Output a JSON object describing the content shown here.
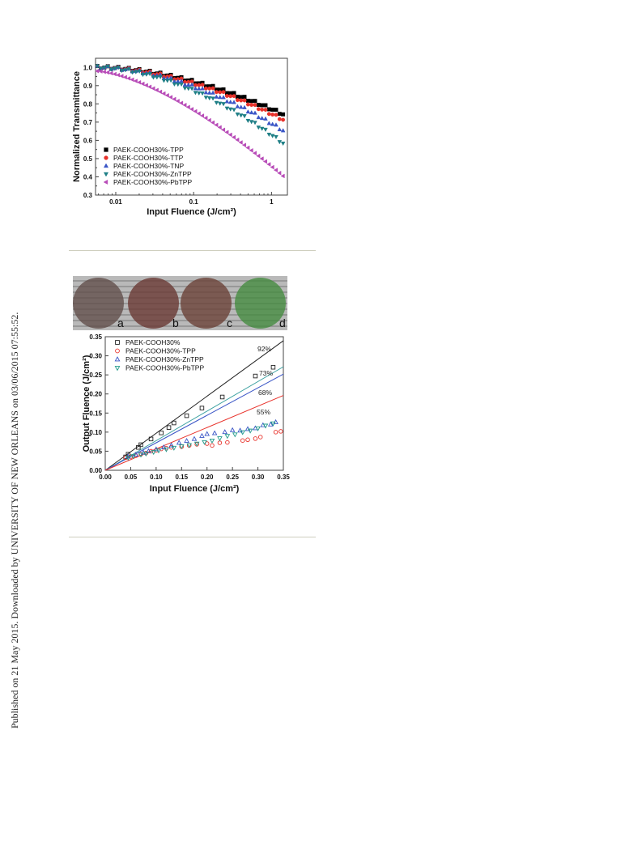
{
  "side_note": "Published on 21 May 2015. Downloaded by UNIVERSITY OF NEW ORLEANS on 03/06/2015 07:55:52.",
  "photo": {
    "labels": [
      "a",
      "b",
      "c",
      "d"
    ],
    "tints": [
      "#5d4a45",
      "#6a3a35",
      "#6b4238",
      "#3f8a3a"
    ]
  },
  "chart_data": [
    {
      "type": "scatter",
      "xlabel": "Input Fluence (J/cm²)",
      "ylabel": "Normalized Transmittance",
      "xscale": "log",
      "xlim": [
        0.0055,
        1.6
      ],
      "ylim": [
        0.3,
        1.05
      ],
      "xticks": [
        "0.01",
        "0.1",
        "1"
      ],
      "yticks": [
        "0.3",
        "0.4",
        "0.5",
        "0.6",
        "0.7",
        "0.8",
        "0.9",
        "1.0"
      ],
      "legend_position": "bottom-left",
      "series": [
        {
          "name": "PAEK-COOH30%-TPP",
          "color": "#000000",
          "marker": "square",
          "y_end": 0.74
        },
        {
          "name": "PAEK-COOH30%-TTP",
          "color": "#e8322b",
          "marker": "circle",
          "y_end": 0.71
        },
        {
          "name": "PAEK-COOH30%-TNP",
          "color": "#3a55c6",
          "marker": "triangle-up",
          "y_end": 0.65
        },
        {
          "name": "PAEK-COOH30%-ZnTPP",
          "color": "#1f7f86",
          "marker": "triangle-down",
          "y_end": 0.58
        },
        {
          "name": "PAEK-COOH30%-PbTPP",
          "color": "#b84cb8",
          "marker": "triangle-left",
          "y_end": 0.4
        }
      ]
    },
    {
      "type": "scatter",
      "xlabel": "Input Fluence (J/cm²)",
      "ylabel": "Output Fluence (J/cm²)",
      "xlim": [
        0.0,
        0.35
      ],
      "ylim": [
        0.0,
        0.35
      ],
      "xticks": [
        "0.00",
        "0.05",
        "0.10",
        "0.15",
        "0.20",
        "0.25",
        "0.30",
        "0.35"
      ],
      "yticks": [
        "0.00",
        "0.05",
        "0.10",
        "0.15",
        "0.20",
        "0.25",
        "0.30",
        "0.35"
      ],
      "legend_position": "top-left",
      "series": [
        {
          "name": "PAEK-COOH30%",
          "color": "#222222",
          "marker": "open-square",
          "x": [
            0.04,
            0.045,
            0.065,
            0.07,
            0.09,
            0.11,
            0.125,
            0.135,
            0.16,
            0.19,
            0.23,
            0.295,
            0.33
          ],
          "y": [
            0.035,
            0.042,
            0.06,
            0.067,
            0.082,
            0.098,
            0.112,
            0.124,
            0.143,
            0.163,
            0.192,
            0.247,
            0.27
          ]
        },
        {
          "name": "PAEK-COOH30%-TPP",
          "color": "#e8322b",
          "marker": "open-circle",
          "x": [
            0.04,
            0.05,
            0.06,
            0.07,
            0.08,
            0.09,
            0.1,
            0.11,
            0.12,
            0.13,
            0.15,
            0.165,
            0.18,
            0.2,
            0.21,
            0.225,
            0.24,
            0.27,
            0.28,
            0.295,
            0.305,
            0.335,
            0.345
          ],
          "y": [
            0.033,
            0.036,
            0.038,
            0.042,
            0.045,
            0.05,
            0.052,
            0.056,
            0.058,
            0.06,
            0.062,
            0.065,
            0.068,
            0.07,
            0.065,
            0.072,
            0.073,
            0.078,
            0.08,
            0.083,
            0.087,
            0.1,
            0.102
          ]
        },
        {
          "name": "PAEK-COOH30%-ZnTPP",
          "color": "#3a55c6",
          "marker": "open-triangle-up",
          "x": [
            0.045,
            0.06,
            0.075,
            0.085,
            0.1,
            0.115,
            0.13,
            0.145,
            0.16,
            0.175,
            0.19,
            0.2,
            0.215,
            0.235,
            0.25,
            0.265,
            0.28,
            0.295,
            0.31,
            0.325,
            0.335
          ],
          "y": [
            0.036,
            0.041,
            0.046,
            0.05,
            0.055,
            0.06,
            0.065,
            0.072,
            0.077,
            0.082,
            0.09,
            0.095,
            0.097,
            0.1,
            0.105,
            0.104,
            0.108,
            0.11,
            0.118,
            0.12,
            0.126
          ]
        },
        {
          "name": "PAEK-COOH30%-PbTPP",
          "color": "#1f9a8a",
          "marker": "open-triangle-down",
          "x": [
            0.045,
            0.055,
            0.07,
            0.08,
            0.095,
            0.105,
            0.12,
            0.135,
            0.15,
            0.165,
            0.18,
            0.195,
            0.21,
            0.225,
            0.24,
            0.255,
            0.27,
            0.285,
            0.3,
            0.315,
            0.33
          ],
          "y": [
            0.033,
            0.037,
            0.041,
            0.044,
            0.048,
            0.052,
            0.055,
            0.059,
            0.063,
            0.066,
            0.07,
            0.074,
            0.078,
            0.084,
            0.09,
            0.094,
            0.1,
            0.104,
            0.11,
            0.117,
            0.123
          ]
        }
      ],
      "fit_lines": [
        {
          "color": "#222222",
          "slope": 0.97,
          "label": "92%"
        },
        {
          "color": "#3aa0a0",
          "slope": 0.775,
          "label": "73%"
        },
        {
          "color": "#3a55c6",
          "slope": 0.72,
          "label": "68%"
        },
        {
          "color": "#e8322b",
          "slope": 0.56,
          "label": "55%"
        }
      ]
    }
  ]
}
